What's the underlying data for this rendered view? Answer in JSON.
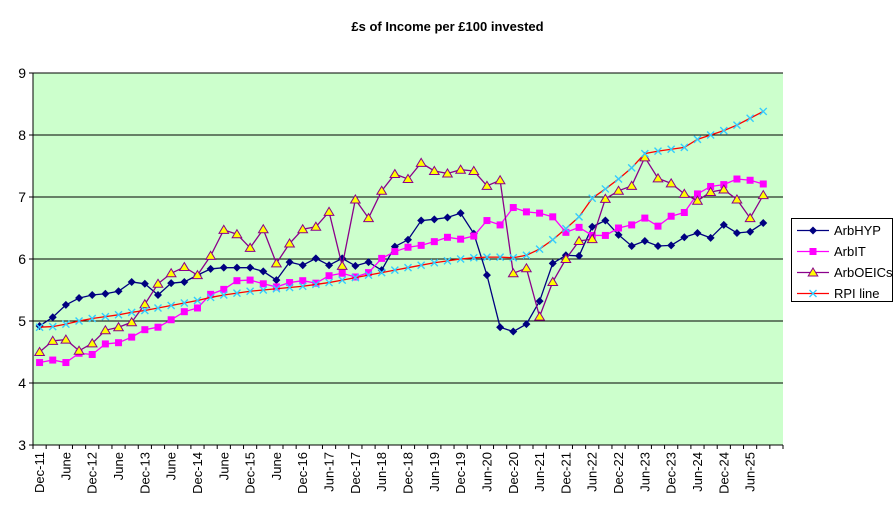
{
  "chart_data": {
    "type": "line",
    "title": "£s of Income per £100 invested",
    "plot_bg_color": "#CCFFCC",
    "outer_bg_color": "#FFFFFF",
    "gridline_color": "#000000",
    "axis_color": "#000000",
    "grid": true,
    "legend_position": "right",
    "ylim": [
      3,
      9
    ],
    "y_ticks": [
      3,
      4,
      5,
      6,
      7,
      8,
      9
    ],
    "x_label_every": 2,
    "x_axis_labels": [
      "Dec-11",
      "June",
      "Dec-12",
      "June",
      "Dec-13",
      "June",
      "Dec-14",
      "June",
      "Dec-15",
      "June",
      "Dec-16",
      "Jun-17",
      "Dec-17",
      "Jun-18",
      "Dec-18",
      "Jun-19",
      "Dec-19",
      "Jun-20",
      "Dec-20",
      "Jun-21",
      "Dec-21",
      "Jun-22",
      "Dec-22",
      "Jun-23",
      "Dec-23",
      "Jun-24",
      "Dec-24",
      "Jun-25"
    ],
    "categories": [
      "Dec-11",
      "Mar-12",
      "Jun-12",
      "Sep-12",
      "Dec-12",
      "Mar-13",
      "Jun-13",
      "Sep-13",
      "Dec-13",
      "Mar-14",
      "Jun-14",
      "Sep-14",
      "Dec-14",
      "Mar-15",
      "Jun-15",
      "Sep-15",
      "Dec-15",
      "Mar-16",
      "Jun-16",
      "Sep-16",
      "Dec-16",
      "Mar-17",
      "Jun-17",
      "Sep-17",
      "Dec-17",
      "Mar-18",
      "Jun-18",
      "Sep-18",
      "Dec-18",
      "Mar-19",
      "Jun-19",
      "Sep-19",
      "Dec-19",
      "Mar-20",
      "Jun-20",
      "Sep-20",
      "Dec-20",
      "Mar-21",
      "Jun-21",
      "Sep-21",
      "Dec-21",
      "Mar-22",
      "Jun-22",
      "Sep-22",
      "Dec-22",
      "Mar-23",
      "Jun-23",
      "Sep-23",
      "Dec-23",
      "Mar-24",
      "Jun-24",
      "Sep-24",
      "Dec-24",
      "Mar-25",
      "Jun-25",
      "Sep-25"
    ],
    "series": [
      {
        "name": "ArbHYP",
        "line_color": "#000080",
        "marker": "diamond",
        "marker_color": "#000080",
        "values": [
          4.92,
          5.06,
          5.26,
          5.37,
          5.42,
          5.44,
          5.48,
          5.63,
          5.6,
          5.42,
          5.61,
          5.63,
          5.74,
          5.84,
          5.86,
          5.86,
          5.86,
          5.8,
          5.66,
          5.95,
          5.9,
          6.01,
          5.9,
          6.01,
          5.89,
          5.95,
          5.82,
          6.2,
          6.31,
          6.62,
          6.64,
          6.67,
          6.74,
          6.41,
          5.74,
          4.9,
          4.83,
          4.95,
          5.32,
          5.93,
          6.06,
          6.05,
          6.52,
          6.62,
          6.39,
          6.21,
          6.29,
          6.21,
          6.22,
          6.35,
          6.42,
          6.34,
          6.55,
          6.42,
          6.44,
          6.58
        ]
      },
      {
        "name": "ArbIT",
        "line_color": "#FF00FF",
        "marker": "square",
        "marker_color": "#FF00FF",
        "values": [
          4.33,
          4.37,
          4.33,
          4.48,
          4.46,
          4.63,
          4.65,
          4.74,
          4.86,
          4.9,
          5.02,
          5.15,
          5.21,
          5.43,
          5.51,
          5.65,
          5.66,
          5.6,
          5.55,
          5.62,
          5.65,
          5.61,
          5.73,
          5.77,
          5.71,
          5.78,
          6.01,
          6.12,
          6.19,
          6.22,
          6.28,
          6.35,
          6.32,
          6.37,
          6.62,
          6.55,
          6.83,
          6.76,
          6.74,
          6.68,
          6.43,
          6.51,
          6.38,
          6.38,
          6.5,
          6.55,
          6.66,
          6.53,
          6.69,
          6.75,
          7.05,
          7.17,
          7.2,
          7.29,
          7.27,
          7.21
        ]
      },
      {
        "name": "ArbOEICs",
        "line_color": "#8B008B",
        "marker": "triangle-up",
        "marker_color": "#FFFF00",
        "marker_edge_color": "#8B008B",
        "values": [
          4.5,
          4.68,
          4.7,
          4.52,
          4.64,
          4.85,
          4.9,
          4.98,
          5.27,
          5.6,
          5.77,
          5.87,
          5.74,
          6.05,
          6.47,
          6.4,
          6.18,
          6.48,
          5.93,
          6.25,
          6.48,
          6.52,
          6.76,
          5.89,
          6.96,
          6.66,
          7.1,
          7.37,
          7.29,
          7.55,
          7.42,
          7.38,
          7.44,
          7.42,
          7.18,
          7.27,
          5.77,
          5.85,
          5.07,
          5.63,
          6.0,
          6.29,
          6.32,
          6.97,
          7.1,
          7.18,
          7.64,
          7.3,
          7.22,
          7.05,
          6.94,
          7.08,
          7.12,
          6.96,
          6.66,
          7.03
        ]
      },
      {
        "name": "RPI line",
        "line_color": "#FF0000",
        "marker": "x",
        "marker_color": "#33CCFF",
        "values": [
          4.9,
          4.91,
          4.95,
          5.0,
          5.04,
          5.07,
          5.1,
          5.14,
          5.17,
          5.21,
          5.25,
          5.29,
          5.33,
          5.38,
          5.42,
          5.45,
          5.48,
          5.5,
          5.52,
          5.54,
          5.56,
          5.59,
          5.62,
          5.66,
          5.7,
          5.74,
          5.78,
          5.82,
          5.86,
          5.9,
          5.94,
          5.97,
          6.0,
          6.02,
          6.03,
          6.03,
          6.02,
          6.06,
          6.16,
          6.31,
          6.49,
          6.68,
          6.98,
          7.13,
          7.29,
          7.47,
          7.7,
          7.74,
          7.77,
          7.8,
          7.93,
          8.0,
          8.07,
          8.16,
          8.27,
          8.38
        ]
      }
    ]
  }
}
